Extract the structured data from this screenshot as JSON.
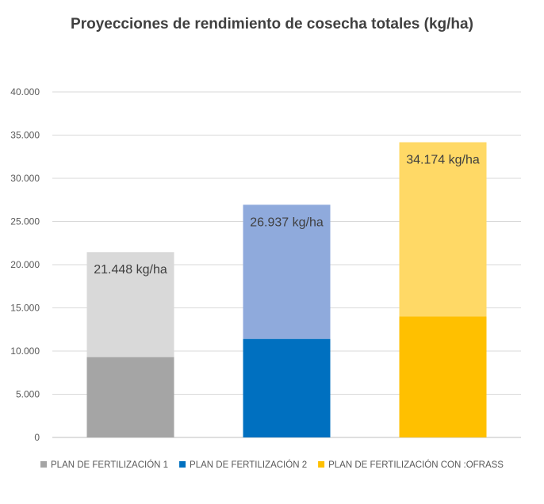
{
  "chart_data": {
    "type": "bar",
    "stacked": true,
    "title": "Proyecciones de rendimiento de cosecha totales (kg/ha)",
    "xlabel": "",
    "ylabel": "",
    "ylim": [
      0,
      40000
    ],
    "yticks": [
      0,
      5000,
      10000,
      15000,
      20000,
      25000,
      30000,
      35000,
      40000
    ],
    "ytick_labels": [
      "0",
      "5.000",
      "10.000",
      "15.000",
      "20.000",
      "25.000",
      "30.000",
      "35.000",
      "40.000"
    ],
    "grid": true,
    "legend_position": "bottom",
    "series": [
      {
        "name": "PLAN DE FERTILIZACIÓN 1",
        "total": 21448,
        "lower_segment": 9300,
        "total_label": "21.448 kg/ha",
        "color_dark": "#a5a5a5",
        "color_light": "#d9d9d9"
      },
      {
        "name": "PLAN DE FERTILIZACIÓN 2",
        "total": 26937,
        "lower_segment": 11400,
        "total_label": "26.937 kg/ha",
        "color_dark": "#0070c0",
        "color_light": "#8faadc"
      },
      {
        "name": "PLAN DE FERTILIZACIÓN CON :OFRASS",
        "total": 34174,
        "lower_segment": 14000,
        "total_label": "34.174 kg/ha",
        "color_dark": "#ffc000",
        "color_light": "#ffd966"
      }
    ]
  }
}
